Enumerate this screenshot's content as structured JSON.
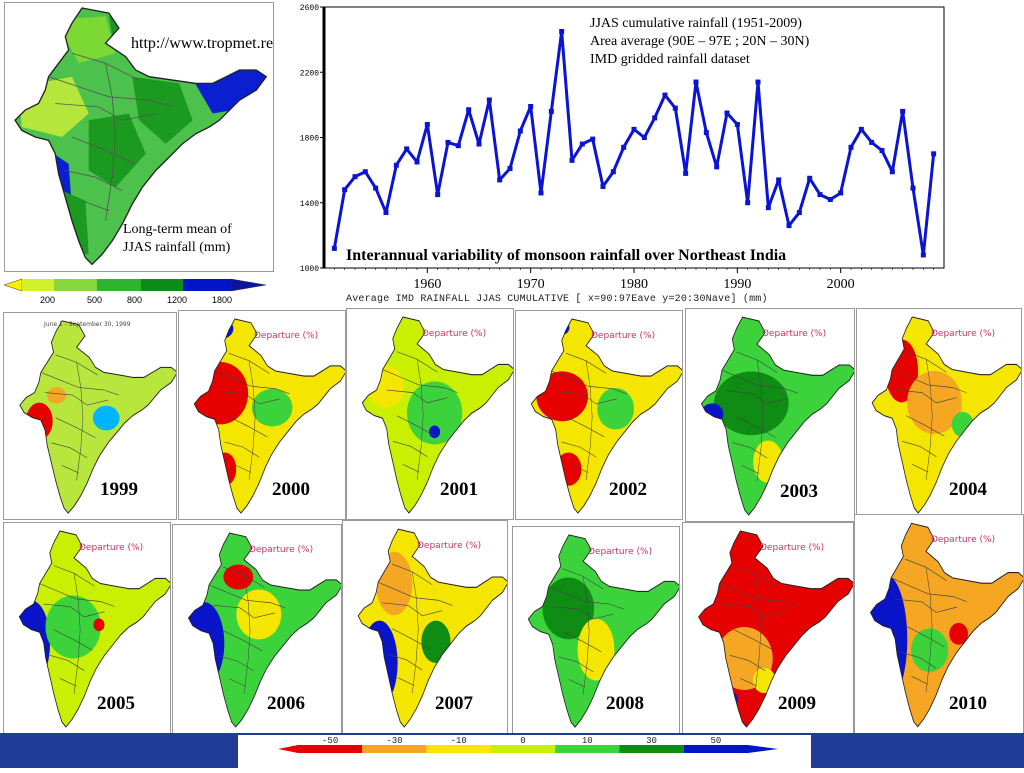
{
  "map_top_left": {
    "url": "http://www.tropmet.res.in",
    "mean_label_line1": "Long-term mean of",
    "mean_label_line2": "JJAS rainfall (mm)",
    "legend_ticks": [
      "200",
      "500",
      "800",
      "1200",
      "1800"
    ]
  },
  "chart_data": {
    "type": "line",
    "annotation_line1": "JJAS cumulative rainfall (1951-2009)",
    "annotation_line2": "Area average (90E – 97E ; 20N – 30N)",
    "annotation_line3": "IMD gridded rainfall dataset",
    "title": "Interannual variability of monsoon rainfall over Northeast India",
    "footer": "Average IMD RAINFALL JJAS CUMULATIVE [ x=90:97Eave y=20:30Nave] (mm)",
    "xlim": [
      1950,
      2010
    ],
    "ylim": [
      1000,
      2600
    ],
    "x_ticks": [
      "1960",
      "1970",
      "1980",
      "1990",
      "2000"
    ],
    "y_ticks": [
      "1000",
      "1400",
      "1800",
      "2200",
      "2600"
    ],
    "grid": true,
    "color": "#0a14d2",
    "x": [
      1951,
      1952,
      1953,
      1954,
      1955,
      1956,
      1957,
      1958,
      1959,
      1960,
      1961,
      1962,
      1963,
      1964,
      1965,
      1966,
      1967,
      1968,
      1969,
      1970,
      1971,
      1972,
      1973,
      1974,
      1975,
      1976,
      1977,
      1978,
      1979,
      1980,
      1981,
      1982,
      1983,
      1984,
      1985,
      1986,
      1987,
      1988,
      1989,
      1990,
      1991,
      1992,
      1993,
      1994,
      1995,
      1996,
      1997,
      1998,
      1999,
      2000,
      2001,
      2002,
      2003,
      2004,
      2005,
      2006,
      2007,
      2008,
      2009
    ],
    "values": [
      1120,
      1480,
      1560,
      1590,
      1490,
      1340,
      1630,
      1730,
      1650,
      1880,
      1450,
      1770,
      1750,
      1970,
      1760,
      2030,
      1540,
      1610,
      1840,
      1990,
      1460,
      1960,
      2450,
      1660,
      1760,
      1790,
      1500,
      1590,
      1740,
      1850,
      1800,
      1920,
      2060,
      1980,
      1580,
      2140,
      1830,
      1620,
      1950,
      1880,
      1400,
      2140,
      1370,
      1540,
      1260,
      1340,
      1550,
      1450,
      1420,
      1460,
      1740,
      1850,
      1770,
      1720,
      1590,
      1960,
      1490,
      1080,
      1700
    ]
  },
  "departure_label": "Departure (%)",
  "years": [
    "1999",
    "2000",
    "2001",
    "2002",
    "2003",
    "2004",
    "2005",
    "2006",
    "2007",
    "2008",
    "2009",
    "2010"
  ],
  "panel_1999_header": "June 1 - September 30, 1999",
  "bottom_legend": {
    "ticks": [
      "-50",
      "-30",
      "-10",
      "0",
      "10",
      "30",
      "50"
    ],
    "colors": [
      "#e60000",
      "#f5a623",
      "#ffe600",
      "#c8f000",
      "#3cd23c",
      "#0f8c14",
      "#0014c8"
    ]
  }
}
